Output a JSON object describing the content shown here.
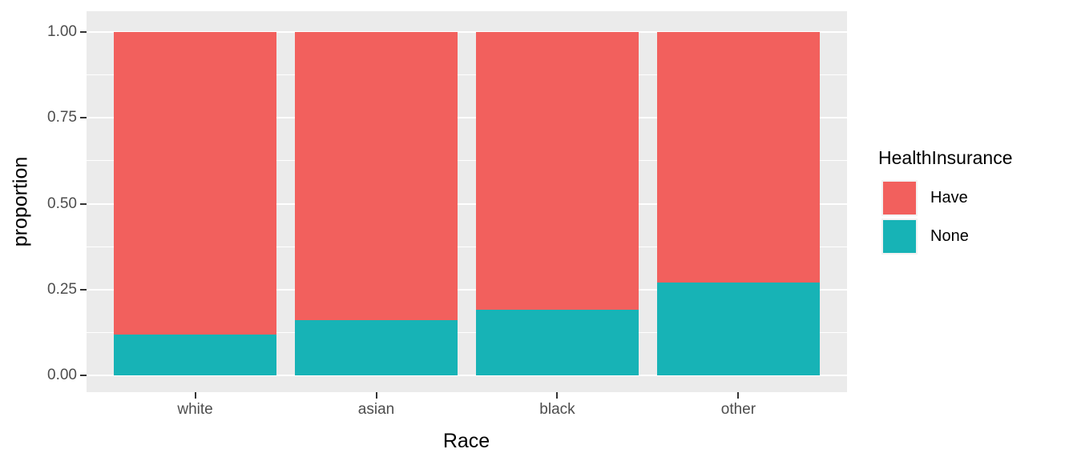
{
  "chart_data": {
    "type": "bar",
    "stacked": true,
    "orientation": "vertical",
    "title": "",
    "xlabel": "Race",
    "ylabel": "proportion",
    "categories": [
      "white",
      "asian",
      "black",
      "other"
    ],
    "series": [
      {
        "name": "Have",
        "color": "#F2605D",
        "values": [
          0.88,
          0.84,
          0.81,
          0.73
        ]
      },
      {
        "name": "None",
        "color": "#17B3B6",
        "values": [
          0.12,
          0.16,
          0.19,
          0.27
        ]
      }
    ],
    "ylim": [
      0,
      1
    ],
    "yticks": [
      0,
      0.25,
      0.5,
      0.75,
      1
    ],
    "ytick_labels": [
      "0.00",
      "0.25",
      "0.50",
      "0.75",
      "1.00"
    ],
    "grid": "on",
    "minor_grid": "on",
    "legend_title": "HealthInsurance",
    "legend_position": "right",
    "bar_width_fraction": 0.9,
    "colors": {
      "panel_background": "#EBEBEB",
      "gridline": "#FFFFFF",
      "tick_mark": "#333333",
      "tick_label": "#4D4D4D",
      "axis_title": "#000000",
      "figure_background": "#FFFFFF"
    }
  }
}
